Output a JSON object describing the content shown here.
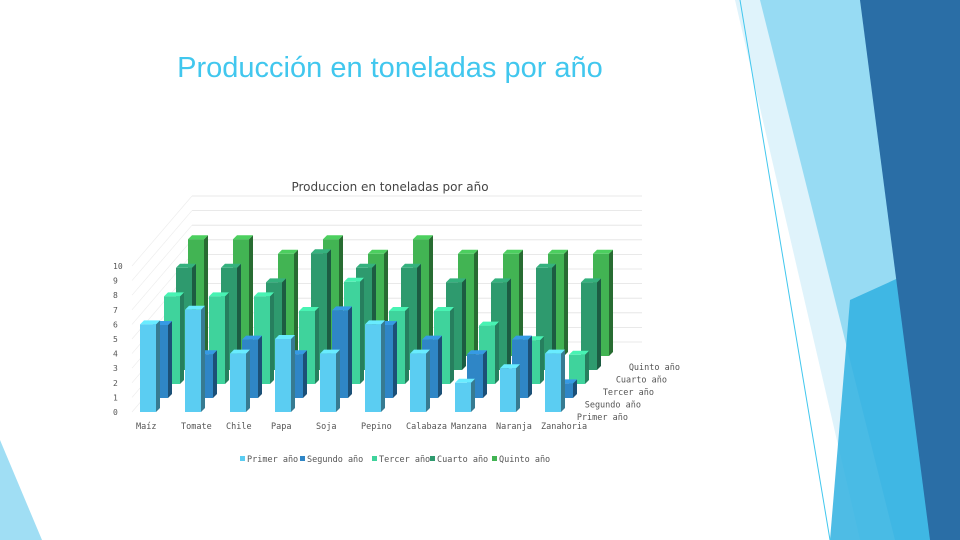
{
  "slide": {
    "title": "Producción en toneladas por año"
  },
  "colors": {
    "accent": "#41c7ee",
    "deco_dark": "#2a6ea6",
    "deco_light": "#8fd8f2"
  },
  "chart_data": {
    "type": "bar",
    "style": "3d-clustered-depth",
    "title": "Produccion en toneladas por año",
    "categories": [
      "Maíz",
      "Tomate",
      "Chile",
      "Papa",
      "Soja",
      "Pepino",
      "Calabaza",
      "Manzana",
      "Naranja",
      "Zanahoria"
    ],
    "series": [
      {
        "name": "Primer año",
        "color": "#5bcdf2",
        "values": [
          6,
          7,
          4,
          5,
          4,
          6,
          4,
          2,
          3,
          4
        ]
      },
      {
        "name": "Segundo año",
        "color": "#2f86c6",
        "values": [
          5,
          3,
          4,
          3,
          6,
          5,
          4,
          3,
          4,
          1
        ]
      },
      {
        "name": "Tercer año",
        "color": "#3fd39c",
        "values": [
          6,
          6,
          6,
          5,
          7,
          5,
          5,
          4,
          3,
          2
        ]
      },
      {
        "name": "Cuarto año",
        "color": "#2e9a6e",
        "values": [
          7,
          7,
          6,
          8,
          7,
          7,
          6,
          6,
          7,
          6
        ]
      },
      {
        "name": "Quinto año",
        "color": "#42b453",
        "values": [
          8,
          8,
          7,
          8,
          7,
          8,
          7,
          7,
          7,
          7
        ]
      }
    ],
    "ylim": [
      0,
      10
    ],
    "yticks": [
      "0",
      "1",
      "2",
      "3",
      "4",
      "5",
      "6",
      "7",
      "8",
      "9",
      "10"
    ],
    "legend": "bottom",
    "grid": true
  }
}
